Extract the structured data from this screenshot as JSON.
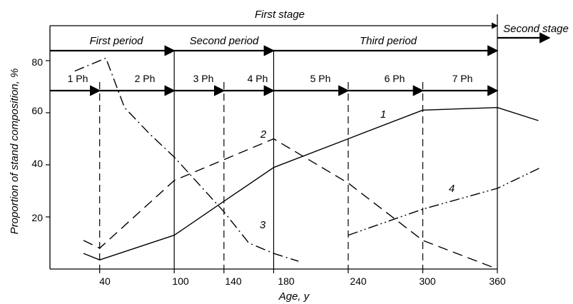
{
  "chart_data": {
    "type": "line",
    "xlabel": "Age, y",
    "ylabel": "Proportion of stand composition, %",
    "xlim": [
      0,
      360
    ],
    "ylim": [
      0,
      88
    ],
    "xticks": [
      40,
      100,
      140,
      180,
      240,
      300,
      360
    ],
    "yticks": [
      20,
      40,
      60,
      80
    ],
    "grid": false,
    "stage_labels": [
      "First stage",
      "Second stage"
    ],
    "period_labels": [
      "First period",
      "Second period",
      "Third period"
    ],
    "phase_labels": [
      "1 Ph",
      "2 Ph",
      "3 Ph",
      "4 Ph",
      "5 Ph",
      "6 Ph",
      "7 Ph"
    ],
    "periods": [
      {
        "label": "First period",
        "from": 0,
        "to": 100
      },
      {
        "label": "Second period",
        "from": 100,
        "to": 180
      },
      {
        "label": "Third period",
        "from": 180,
        "to": 360
      }
    ],
    "phases": [
      {
        "label": "1 Ph",
        "from": 0,
        "to": 40
      },
      {
        "label": "2 Ph",
        "from": 40,
        "to": 100
      },
      {
        "label": "3 Ph",
        "from": 100,
        "to": 140
      },
      {
        "label": "4 Ph",
        "from": 140,
        "to": 180
      },
      {
        "label": "5 Ph",
        "from": 180,
        "to": 240
      },
      {
        "label": "6 Ph",
        "from": 240,
        "to": 300
      },
      {
        "label": "7 Ph",
        "from": 300,
        "to": 360
      }
    ],
    "phase_boundaries": [
      40,
      140,
      240,
      300
    ],
    "period_boundaries": [
      100,
      180,
      360
    ],
    "series": [
      {
        "name": "1",
        "style": "solid",
        "x": [
          27,
          40,
          100,
          140,
          180,
          240,
          300,
          360,
          393
        ],
        "y": [
          6,
          3.5,
          13,
          26,
          39,
          50,
          61,
          62,
          57
        ]
      },
      {
        "name": "2",
        "style": "dashed",
        "x": [
          27,
          40,
          100,
          140,
          180,
          240,
          300,
          360
        ],
        "y": [
          11,
          8,
          34,
          42,
          50,
          33,
          11,
          0
        ]
      },
      {
        "name": "3",
        "style": "dash-dot",
        "x": [
          20,
          45,
          60,
          80,
          100,
          140,
          160,
          180,
          200
        ],
        "y": [
          76,
          81,
          62,
          52,
          43,
          22,
          10,
          6,
          3
        ]
      },
      {
        "name": "4",
        "style": "dash-dot-dot",
        "x": [
          240,
          300,
          360,
          395
        ],
        "y": [
          13,
          23,
          31,
          39
        ]
      }
    ]
  }
}
